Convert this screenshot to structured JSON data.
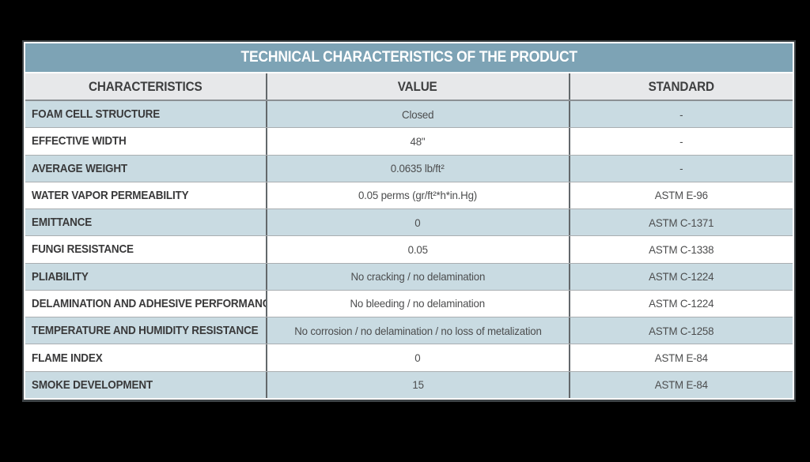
{
  "title": "TECHNICAL CHARACTERISTICS OF THE PRODUCT",
  "columns": [
    "CHARACTERISTICS",
    "VALUE",
    "STANDARD"
  ],
  "rows": [
    {
      "characteristic": "FOAM CELL STRUCTURE",
      "value": "Closed",
      "standard": "-"
    },
    {
      "characteristic": "EFFECTIVE WIDTH",
      "value": "48\"",
      "standard": "-"
    },
    {
      "characteristic": "AVERAGE WEIGHT",
      "value": "0.0635 lb/ft²",
      "standard": "-"
    },
    {
      "characteristic": "WATER VAPOR PERMEABILITY",
      "value": "0.05 perms (gr/ft²*h*in.Hg)",
      "standard": "ASTM E-96"
    },
    {
      "characteristic": "EMITTANCE",
      "value": "0",
      "standard": "ASTM C-1371"
    },
    {
      "characteristic": "FUNGI RESISTANCE",
      "value": "0.05",
      "standard": "ASTM C-1338"
    },
    {
      "characteristic": "PLIABILITY",
      "value": "No cracking / no delamination",
      "standard": "ASTM C-1224"
    },
    {
      "characteristic": "DELAMINATION AND ADHESIVE PERFORMANCE",
      "value": "No bleeding / no delamination",
      "standard": "ASTM C-1224"
    },
    {
      "characteristic": "TEMPERATURE AND HUMIDITY RESISTANCE",
      "value": "No corrosion / no delamination / no loss of metalization",
      "standard": "ASTM C-1258"
    },
    {
      "characteristic": "FLAME INDEX",
      "value": "0",
      "standard": "ASTM E-84"
    },
    {
      "characteristic": "SMOKE DEVELOPMENT",
      "value": "15",
      "standard": "ASTM E-84"
    }
  ],
  "colors": {
    "title_bar": "#7da3b5",
    "header_bg": "#e7e8ea",
    "row_blue": "#c9dbe2",
    "row_white": "#ffffff",
    "frame_border": "#3e4346",
    "header_text": "#3d3e3f",
    "label_text": "#39393a",
    "value_text": "#4c4d4e"
  }
}
